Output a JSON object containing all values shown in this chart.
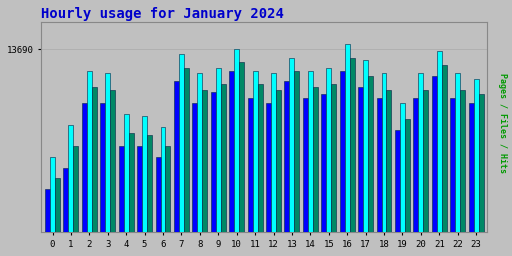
{
  "title": "Hourly usage for January 2024",
  "title_color": "#0000cc",
  "title_fontsize": 10,
  "ylabel": "Pages / Files / Hits",
  "ylabel_color": "#009900",
  "background_color": "#c0c0c0",
  "plot_bg_color": "#c0c0c0",
  "hours": [
    0,
    1,
    2,
    3,
    4,
    5,
    6,
    7,
    8,
    9,
    10,
    11,
    12,
    13,
    14,
    15,
    16,
    17,
    18,
    19,
    20,
    21,
    22,
    23
  ],
  "pages": [
    13560,
    13580,
    13640,
    13640,
    13600,
    13600,
    13590,
    13660,
    13640,
    13650,
    13670,
    13645,
    13640,
    13660,
    13645,
    13648,
    13670,
    13655,
    13645,
    13615,
    13645,
    13665,
    13645,
    13640
  ],
  "files": [
    13590,
    13620,
    13670,
    13668,
    13630,
    13628,
    13618,
    13685,
    13668,
    13672,
    13690,
    13670,
    13668,
    13682,
    13670,
    13672,
    13695,
    13680,
    13668,
    13640,
    13668,
    13688,
    13668,
    13662
  ],
  "hits": [
    13570,
    13600,
    13655,
    13652,
    13612,
    13610,
    13600,
    13672,
    13652,
    13658,
    13678,
    13658,
    13652,
    13670,
    13655,
    13658,
    13682,
    13665,
    13652,
    13625,
    13652,
    13675,
    13652,
    13648
  ],
  "pages_color": "#0000ff",
  "files_color": "#00ffff",
  "hits_color": "#008866",
  "bar_edge_color": "#002244",
  "ytick_label": "13690",
  "ylim_min": 13520,
  "ylim_max": 13715,
  "xlim_min": -0.6,
  "xlim_max": 23.6,
  "bar_width": 0.27
}
